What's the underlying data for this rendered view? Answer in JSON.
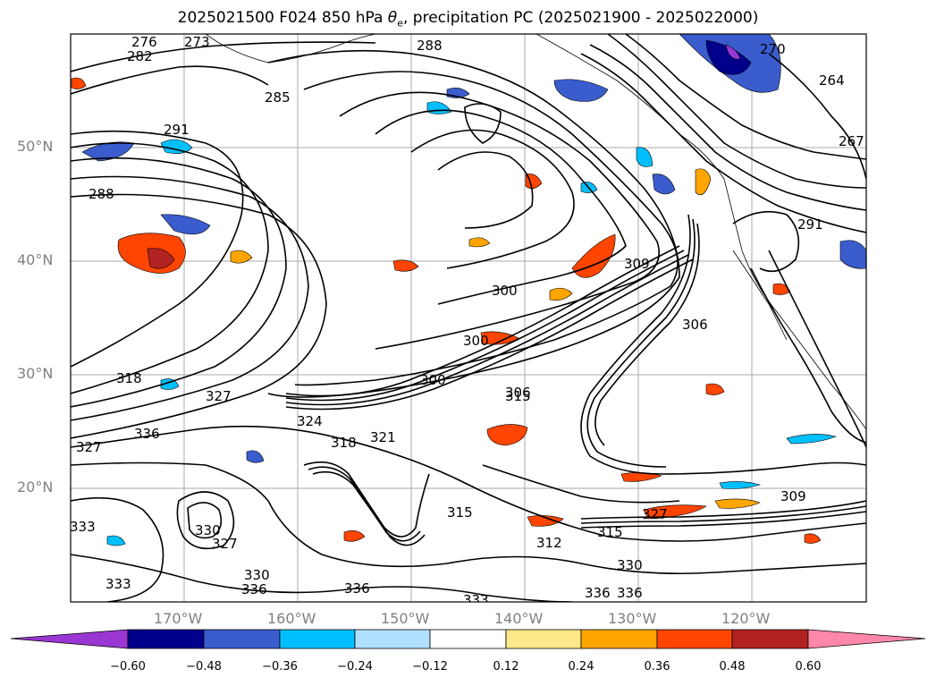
{
  "title": {
    "main": "2025021500 F024 850 hPa ",
    "symbol": "θ",
    "subscript": "e",
    "rest": ", precipitation PC (2025021900 - 2025022000)"
  },
  "lat_labels": [
    "50°N",
    "40°N",
    "30°N",
    "20°N"
  ],
  "lon_labels": [
    "170°W",
    "160°W",
    "150°W",
    "140°W",
    "130°W",
    "120°W"
  ],
  "contour_labels": [
    "276",
    "273",
    "282",
    "288",
    "285",
    "291",
    "288",
    "270",
    "264",
    "267",
    "291",
    "300",
    "309",
    "306",
    "300",
    "300",
    "306",
    "315",
    "318",
    "327",
    "336",
    "327",
    "318",
    "321",
    "324",
    "333",
    "330",
    "327",
    "315",
    "312",
    "315",
    "330",
    "336",
    "336",
    "336",
    "333",
    "309",
    "327",
    "330",
    "336",
    "333"
  ],
  "colorbar": {
    "ticks": [
      "−0.60",
      "−0.48",
      "−0.36",
      "−0.24",
      "−0.12",
      "0.12",
      "0.24",
      "0.36",
      "0.48",
      "0.60"
    ],
    "colors": [
      "#9a36d2",
      "#00008b",
      "#3a5ccc",
      "#00bfff",
      "#b0e0ff",
      "#ffffff",
      "#ffe88a",
      "#ffa500",
      "#ff4500",
      "#b22222",
      "#ff88aa"
    ]
  },
  "colors": {
    "contour": "#000000",
    "grid": "#888888",
    "axis_label": "#808080"
  }
}
